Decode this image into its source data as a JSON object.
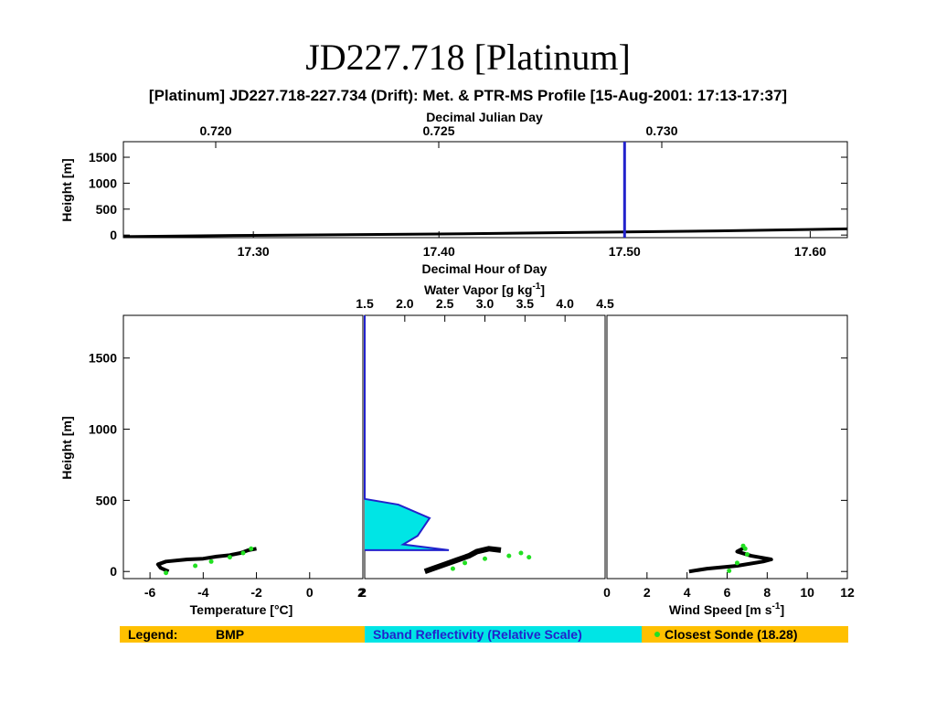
{
  "slide": {
    "title": "JD227.718 [Platinum]"
  },
  "figure": {
    "title": "[Platinum] JD227.718-227.734 (Drift): Met. & PTR-MS Profile [15-Aug-2001: 17:13-17:37]"
  },
  "colors": {
    "data": "#000000",
    "sonde": "#22e022",
    "reflectivity_fill": "#00e5e5",
    "reflectivity_line": "#2222cc",
    "legend_bg": "#ffc000"
  },
  "legend": {
    "label": "Legend:",
    "item1": "BMP",
    "item2": "Sband Reflectivity (Relative Scale)",
    "item3": "Closest Sonde (18.28)"
  },
  "chart_data": [
    {
      "type": "line",
      "title": "",
      "xlabel": "Decimal Hour of Day",
      "ylabel": "Height [m]",
      "xlim": [
        17.23,
        17.62
      ],
      "ylim": [
        -50,
        1800
      ],
      "xticks": [
        "17.30",
        "17.40",
        "17.50",
        "17.60"
      ],
      "yticks": [
        "0",
        "500",
        "1000",
        "1500"
      ],
      "top_axis": {
        "label": "Decimal Julian Day",
        "ticks": [
          "0.720",
          "0.725",
          "0.730"
        ]
      },
      "series": [
        {
          "values": [
            [
              17.23,
              -30
            ],
            [
              17.3,
              -5
            ],
            [
              17.4,
              20
            ],
            [
              17.5,
              60
            ],
            [
              17.55,
              80
            ],
            [
              17.62,
              120
            ]
          ]
        }
      ],
      "vline": {
        "x": 17.5
      }
    },
    {
      "type": "scatter",
      "xlabel": "Temperature [°C]",
      "ylabel": "Height [m]",
      "xlim": [
        -7,
        2
      ],
      "ylim": [
        -50,
        1800
      ],
      "xticks": [
        "-6",
        "-4",
        "-2",
        "0",
        "2"
      ],
      "yticks": [
        "0",
        "500",
        "1000",
        "1500"
      ],
      "series": [
        {
          "values": [
            [
              -5.3,
              0
            ],
            [
              -5.6,
              25
            ],
            [
              -5.7,
              50
            ],
            [
              -5.4,
              70
            ],
            [
              -4.6,
              85
            ],
            [
              -4.0,
              90
            ],
            [
              -3.5,
              105
            ],
            [
              -3.0,
              115
            ],
            [
              -2.6,
              130
            ],
            [
              -2.3,
              150
            ],
            [
              -2.0,
              160
            ]
          ]
        }
      ],
      "sonde": [
        [
          -5.4,
          -10
        ],
        [
          -4.3,
          40
        ],
        [
          -3.7,
          70
        ],
        [
          -3.0,
          100
        ],
        [
          -2.5,
          130
        ],
        [
          -2.2,
          160
        ]
      ]
    },
    {
      "type": "area",
      "xlabel": "",
      "top_axis": {
        "label": "Water Vapor [g kg-1]",
        "ticks": [
          "1.5",
          "2.0",
          "2.5",
          "3.0",
          "3.5",
          "4.0",
          "4.5"
        ]
      },
      "xlim": [
        1.5,
        4.5
      ],
      "ylim": [
        -50,
        1800
      ],
      "reflectivity": [
        [
          0,
          1800
        ],
        [
          0,
          510
        ],
        [
          0.14,
          470
        ],
        [
          0.27,
          375
        ],
        [
          0.22,
          250
        ],
        [
          0.16,
          190
        ],
        [
          0.35,
          150
        ],
        [
          0,
          150
        ]
      ],
      "series": [
        {
          "values": [
            [
              2.25,
              0
            ],
            [
              2.35,
              20
            ],
            [
              2.5,
              50
            ],
            [
              2.65,
              80
            ],
            [
              2.8,
              110
            ],
            [
              2.9,
              140
            ],
            [
              3.05,
              160
            ],
            [
              3.2,
              150
            ]
          ]
        }
      ],
      "sonde": [
        [
          2.6,
          20
        ],
        [
          2.75,
          60
        ],
        [
          3.0,
          90
        ],
        [
          3.3,
          110
        ],
        [
          3.45,
          130
        ],
        [
          3.55,
          100
        ]
      ],
      "bottom_ticks": [
        "2",
        "0"
      ]
    },
    {
      "type": "scatter",
      "xlabel": "Wind Speed [m s-1]",
      "xlim": [
        0,
        12
      ],
      "ylim": [
        -50,
        1800
      ],
      "xticks": [
        "0",
        "2",
        "4",
        "6",
        "8",
        "10",
        "12"
      ],
      "series": [
        {
          "values": [
            [
              4.1,
              0
            ],
            [
              5.0,
              20
            ],
            [
              6.5,
              40
            ],
            [
              7.8,
              70
            ],
            [
              8.2,
              85
            ],
            [
              7.2,
              110
            ],
            [
              6.5,
              140
            ],
            [
              6.9,
              170
            ]
          ]
        }
      ],
      "sonde": [
        [
          6.1,
          5
        ],
        [
          6.5,
          60
        ],
        [
          7.0,
          120
        ],
        [
          6.9,
          160
        ],
        [
          6.8,
          180
        ]
      ]
    }
  ]
}
